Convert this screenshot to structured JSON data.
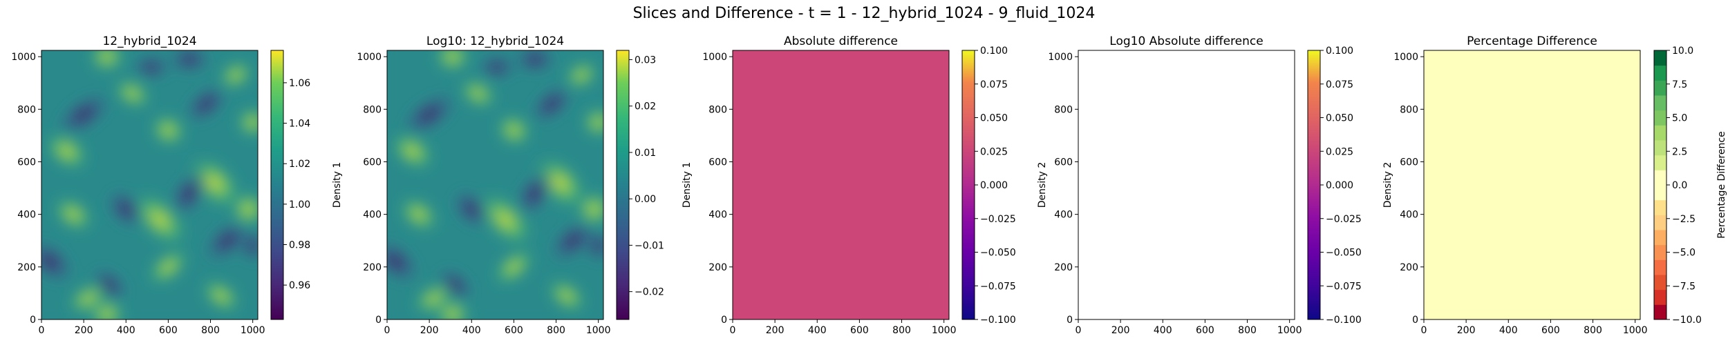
{
  "figure": {
    "title": "Slices and Difference - t = 1 - 12_hybrid_1024 - 9_fluid_1024"
  },
  "colors": {
    "panel3_fill": "#cc4778",
    "panel4_fill": "#ffffff",
    "panel5_fill": "#fefebd"
  },
  "chart_data": [
    {
      "type": "heatmap",
      "title": "12_hybrid_1024",
      "xlim": [
        0,
        1024
      ],
      "ylim": [
        0,
        1024
      ],
      "xticks": [
        0,
        200,
        400,
        600,
        800,
        1000
      ],
      "yticks": [
        0,
        200,
        400,
        600,
        800,
        1000
      ],
      "colormap": "viridis",
      "colorbar": {
        "label": "Density 1",
        "range": [
          0.943,
          1.076
        ],
        "ticks": [
          "0.96",
          "0.98",
          "1.00",
          "1.02",
          "1.04",
          "1.06"
        ],
        "tick_values": [
          0.96,
          0.98,
          1.0,
          1.02,
          1.04,
          1.06
        ]
      }
    },
    {
      "type": "heatmap",
      "title": "Log10: 12_hybrid_1024",
      "xlim": [
        0,
        1024
      ],
      "ylim": [
        0,
        1024
      ],
      "xticks": [
        0,
        200,
        400,
        600,
        800,
        1000
      ],
      "yticks": [
        0,
        200,
        400,
        600,
        800,
        1000
      ],
      "colormap": "viridis",
      "colorbar": {
        "label": "Density 1",
        "range": [
          -0.026,
          0.032
        ],
        "ticks": [
          "−0.02",
          "−0.01",
          "0.00",
          "0.01",
          "0.02",
          "0.03"
        ],
        "tick_values": [
          -0.02,
          -0.01,
          0.0,
          0.01,
          0.02,
          0.03
        ]
      }
    },
    {
      "type": "heatmap",
      "title": "Absolute difference",
      "xlim": [
        0,
        1024
      ],
      "ylim": [
        0,
        1024
      ],
      "xticks": [
        0,
        200,
        400,
        600,
        800,
        1000
      ],
      "yticks": [
        0,
        200,
        400,
        600,
        800,
        1000
      ],
      "colormap": "plasma",
      "uniform_value": 0.0,
      "colorbar": {
        "label": "Density 2",
        "range": [
          -0.1,
          0.1
        ],
        "ticks": [
          "−0.100",
          "−0.075",
          "−0.050",
          "−0.025",
          "0.000",
          "0.025",
          "0.050",
          "0.075",
          "0.100"
        ],
        "tick_values": [
          -0.1,
          -0.075,
          -0.05,
          -0.025,
          0.0,
          0.025,
          0.05,
          0.075,
          0.1
        ]
      }
    },
    {
      "type": "heatmap",
      "title": "Log10 Absolute difference",
      "xlim": [
        0,
        1024
      ],
      "ylim": [
        0,
        1024
      ],
      "xticks": [
        0,
        200,
        400,
        600,
        800,
        1000
      ],
      "yticks": [
        0,
        200,
        400,
        600,
        800,
        1000
      ],
      "colormap": "plasma",
      "colorbar": {
        "label": "Density 2",
        "range": [
          -0.1,
          0.1
        ],
        "ticks": [
          "−0.100",
          "−0.075",
          "−0.050",
          "−0.025",
          "0.000",
          "0.025",
          "0.050",
          "0.075",
          "0.100"
        ],
        "tick_values": [
          -0.1,
          -0.075,
          -0.05,
          -0.025,
          0.0,
          0.025,
          0.05,
          0.075,
          0.1
        ]
      }
    },
    {
      "type": "heatmap",
      "title": "Percentage Difference",
      "xlim": [
        0,
        1024
      ],
      "ylim": [
        0,
        1024
      ],
      "xticks": [
        0,
        200,
        400,
        600,
        800,
        1000
      ],
      "yticks": [
        0,
        200,
        400,
        600,
        800,
        1000
      ],
      "colormap": "RdYlGn",
      "uniform_value": 0.0,
      "colorbar": {
        "label": "Percentage Difference",
        "range": [
          -10,
          10
        ],
        "ticks": [
          "−10.0",
          "−7.5",
          "−5.0",
          "−2.5",
          "0.0",
          "2.5",
          "5.0",
          "7.5",
          "10.0"
        ],
        "tick_values": [
          -10,
          -7.5,
          -5,
          -2.5,
          0,
          2.5,
          5,
          7.5,
          10
        ]
      }
    }
  ]
}
